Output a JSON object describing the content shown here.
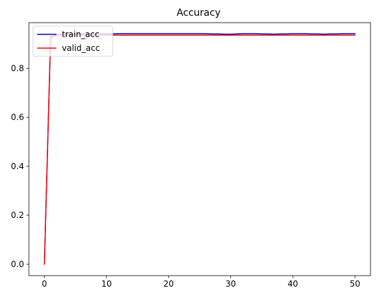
{
  "chart_data": {
    "type": "line",
    "title": "Accuracy",
    "xlabel": "",
    "ylabel": "",
    "xlim": [
      -2.5,
      52.5
    ],
    "ylim": [
      -0.047,
      0.987
    ],
    "xticks": [
      0,
      10,
      20,
      30,
      40,
      50
    ],
    "yticks": [
      0.0,
      0.2,
      0.4,
      0.6,
      0.8
    ],
    "grid": false,
    "legend": "upper left",
    "series": [
      {
        "name": "train_acc",
        "color": "#0000cc",
        "x": [
          0,
          1,
          2,
          3,
          4,
          5,
          6,
          7,
          8,
          9,
          10,
          11,
          12,
          13,
          14,
          15,
          16,
          17,
          18,
          19,
          20,
          21,
          22,
          23,
          24,
          25,
          26,
          27,
          28,
          29,
          30,
          31,
          32,
          33,
          34,
          35,
          36,
          37,
          38,
          39,
          40,
          41,
          42,
          43,
          44,
          45,
          46,
          47,
          48,
          49,
          50
        ],
        "y": [
          0.0,
          0.925,
          0.938,
          0.94,
          0.94,
          0.941,
          0.941,
          0.941,
          0.941,
          0.941,
          0.941,
          0.941,
          0.942,
          0.942,
          0.942,
          0.942,
          0.942,
          0.942,
          0.942,
          0.942,
          0.942,
          0.942,
          0.942,
          0.942,
          0.942,
          0.942,
          0.942,
          0.941,
          0.941,
          0.94,
          0.94,
          0.941,
          0.942,
          0.942,
          0.942,
          0.941,
          0.941,
          0.94,
          0.941,
          0.941,
          0.942,
          0.942,
          0.942,
          0.941,
          0.941,
          0.94,
          0.941,
          0.941,
          0.942,
          0.942,
          0.942
        ]
      },
      {
        "name": "valid_acc",
        "color": "#ff0000",
        "x": [
          0,
          1,
          2,
          3,
          4,
          5,
          6,
          7,
          8,
          9,
          10,
          11,
          12,
          13,
          14,
          15,
          16,
          17,
          18,
          19,
          20,
          21,
          22,
          23,
          24,
          25,
          26,
          27,
          28,
          29,
          30,
          31,
          32,
          33,
          34,
          35,
          36,
          37,
          38,
          39,
          40,
          41,
          42,
          43,
          44,
          45,
          46,
          47,
          48,
          49,
          50
        ],
        "y": [
          0.0,
          0.93,
          0.935,
          0.936,
          0.936,
          0.936,
          0.936,
          0.936,
          0.936,
          0.936,
          0.936,
          0.936,
          0.936,
          0.936,
          0.936,
          0.936,
          0.936,
          0.936,
          0.936,
          0.936,
          0.936,
          0.936,
          0.936,
          0.936,
          0.936,
          0.936,
          0.936,
          0.936,
          0.936,
          0.936,
          0.936,
          0.936,
          0.936,
          0.936,
          0.936,
          0.936,
          0.936,
          0.936,
          0.936,
          0.936,
          0.936,
          0.936,
          0.936,
          0.936,
          0.936,
          0.936,
          0.936,
          0.936,
          0.936,
          0.936,
          0.936
        ]
      }
    ]
  }
}
